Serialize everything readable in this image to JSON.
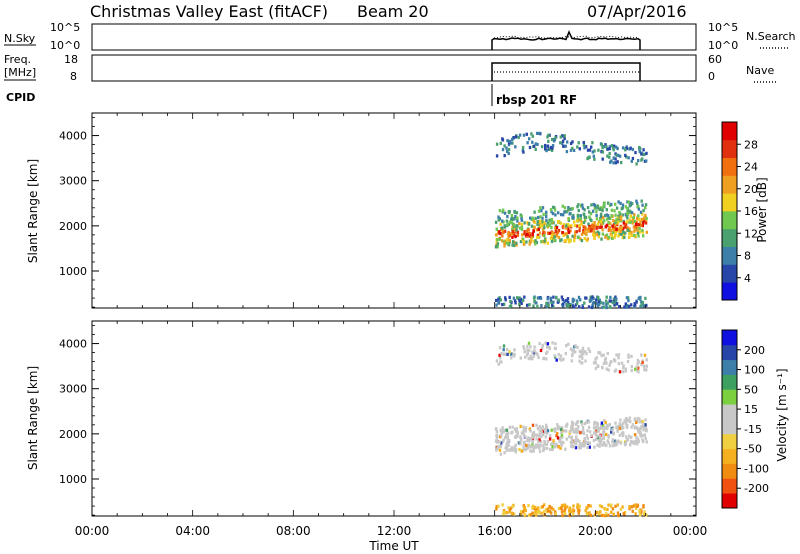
{
  "header": {
    "title": "Christmas Valley East (fitACF)",
    "beam": "Beam 20",
    "date": "07/Apr/2016"
  },
  "panels": {
    "nsky": {
      "left_label": "N.Sky",
      "left_ticks": [
        "10^5",
        "10^0"
      ],
      "right_ticks": [
        "10^5",
        "10^0"
      ],
      "right_label": "N.Search"
    },
    "freq": {
      "left_label_1": "Freq.",
      "left_label_2": "[MHz]",
      "left_ticks": [
        "18",
        "8"
      ],
      "right_ticks": [
        "60",
        "0"
      ],
      "right_label": "Nave"
    },
    "cpid": {
      "label": "CPID",
      "mode_text": "rbsp 201 RF"
    }
  },
  "x_axis": {
    "label": "Time UT",
    "ticks": [
      "00:00",
      "04:00",
      "08:00",
      "12:00",
      "16:00",
      "20:00",
      "00:00"
    ]
  },
  "colorbars": {
    "power": {
      "label": "Power [dB]",
      "colors": [
        "#1010e0",
        "#2846a8",
        "#3d7fa8",
        "#4aa06e",
        "#70c850",
        "#f0d020",
        "#f0a020",
        "#f07010",
        "#e03010",
        "#e00000"
      ],
      "tick_labels": [
        "4",
        "8",
        "12",
        "16",
        "20",
        "24",
        "28"
      ]
    },
    "velocity": {
      "label": "Velocity [m s⁻¹]",
      "colors": [
        "#e00000",
        "#f05010",
        "#f08c10",
        "#f5b020",
        "#f0d040",
        "#c8c8c8",
        "#c8c8c8",
        "#7cd040",
        "#3ea060",
        "#3d7fa8",
        "#2846a8",
        "#1010e0"
      ],
      "tick_labels": [
        "200",
        "100",
        "50",
        "15",
        "-15",
        "-50",
        "-100",
        "-200"
      ]
    }
  },
  "chart_data": [
    {
      "type": "heatmap",
      "name": "power",
      "ylabel": "Slant Range [km]",
      "xlabel": "",
      "x_range_hours": [
        0,
        24
      ],
      "ylim": [
        180,
        4500
      ],
      "y_ticks": [
        1000,
        2000,
        3000,
        4000
      ],
      "data_window_hours": [
        16,
        22
      ],
      "bands": [
        {
          "y_center_km": 1900,
          "y_halfwidth_km": 260,
          "level": "high",
          "note": "main band"
        },
        {
          "y_center_km": 2300,
          "y_halfwidth_km": 150,
          "level": "mid"
        },
        {
          "y_center_km": 3700,
          "y_halfwidth_km": 200,
          "level": "low"
        },
        {
          "y_center_km": 300,
          "y_halfwidth_km": 120,
          "level": "low"
        }
      ]
    },
    {
      "type": "heatmap",
      "name": "velocity",
      "ylabel": "Slant Range [km]",
      "xlabel": "Time UT",
      "x_range_hours": [
        0,
        24
      ],
      "ylim": [
        180,
        4500
      ],
      "y_ticks": [
        1000,
        2000,
        3000,
        4000
      ],
      "data_window_hours": [
        16,
        22
      ],
      "bands": [
        {
          "y_center_km": 1950,
          "y_halfwidth_km": 300,
          "level": "near-zero"
        },
        {
          "y_center_km": 3700,
          "y_halfwidth_km": 200,
          "level": "near-zero"
        },
        {
          "y_center_km": 300,
          "y_halfwidth_km": 120,
          "level": "low-negative"
        }
      ]
    }
  ]
}
